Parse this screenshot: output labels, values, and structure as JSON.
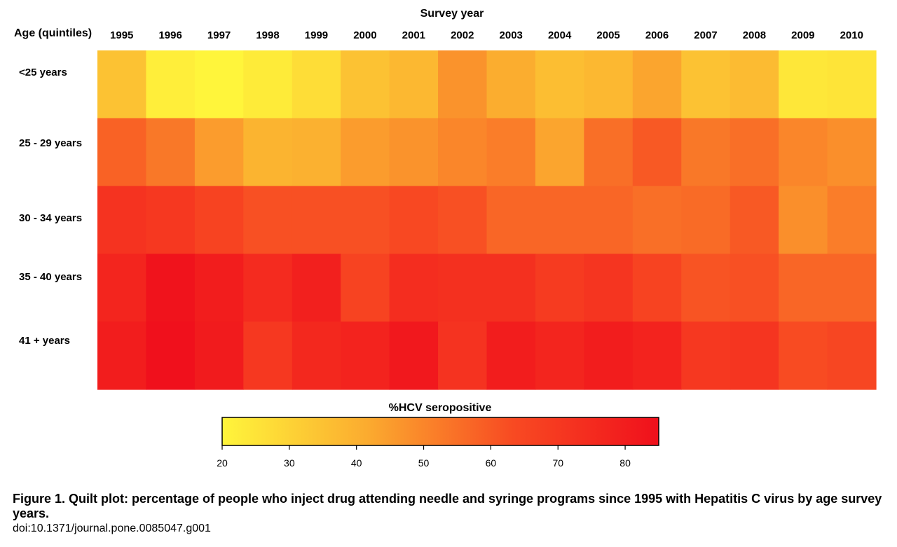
{
  "chart_data": {
    "type": "heatmap",
    "title": "",
    "xlabel": "Survey year",
    "ylabel": "Age (quintiles)",
    "x_categories": [
      "1995",
      "1996",
      "1997",
      "1998",
      "1999",
      "2000",
      "2001",
      "2002",
      "2003",
      "2004",
      "2005",
      "2006",
      "2007",
      "2008",
      "2009",
      "2010"
    ],
    "y_categories": [
      "<25 years",
      "25 - 29 years",
      "30 - 34 years",
      "35 - 40 years",
      "41 + years"
    ],
    "values": [
      [
        35,
        22,
        20,
        23,
        27,
        35,
        38,
        47,
        41,
        36,
        38,
        43,
        35,
        37,
        24,
        25
      ],
      [
        58,
        53,
        45,
        39,
        40,
        45,
        47,
        50,
        52,
        43,
        55,
        60,
        53,
        55,
        50,
        48
      ],
      [
        72,
        70,
        66,
        62,
        62,
        62,
        64,
        62,
        57,
        57,
        57,
        55,
        56,
        60,
        48,
        52
      ],
      [
        77,
        84,
        80,
        75,
        79,
        66,
        74,
        73,
        73,
        69,
        71,
        66,
        61,
        62,
        57,
        57
      ],
      [
        80,
        85,
        81,
        70,
        76,
        78,
        82,
        72,
        80,
        77,
        80,
        78,
        70,
        71,
        63,
        65
      ]
    ],
    "colorbar": {
      "label": "%HCV seropositive",
      "min": 20,
      "max": 85,
      "ticks": [
        20,
        30,
        40,
        50,
        60,
        70,
        80
      ],
      "colors": [
        "#fff53b",
        "#fbab2f",
        "#f84a22",
        "#f0101c"
      ]
    }
  },
  "caption": {
    "title": "Figure 1. Quilt plot: percentage of people who inject drug attending needle and syringe programs since 1995 with Hepatitis C virus by age survey years.",
    "doi": "doi:10.1371/journal.pone.0085047.g001"
  }
}
